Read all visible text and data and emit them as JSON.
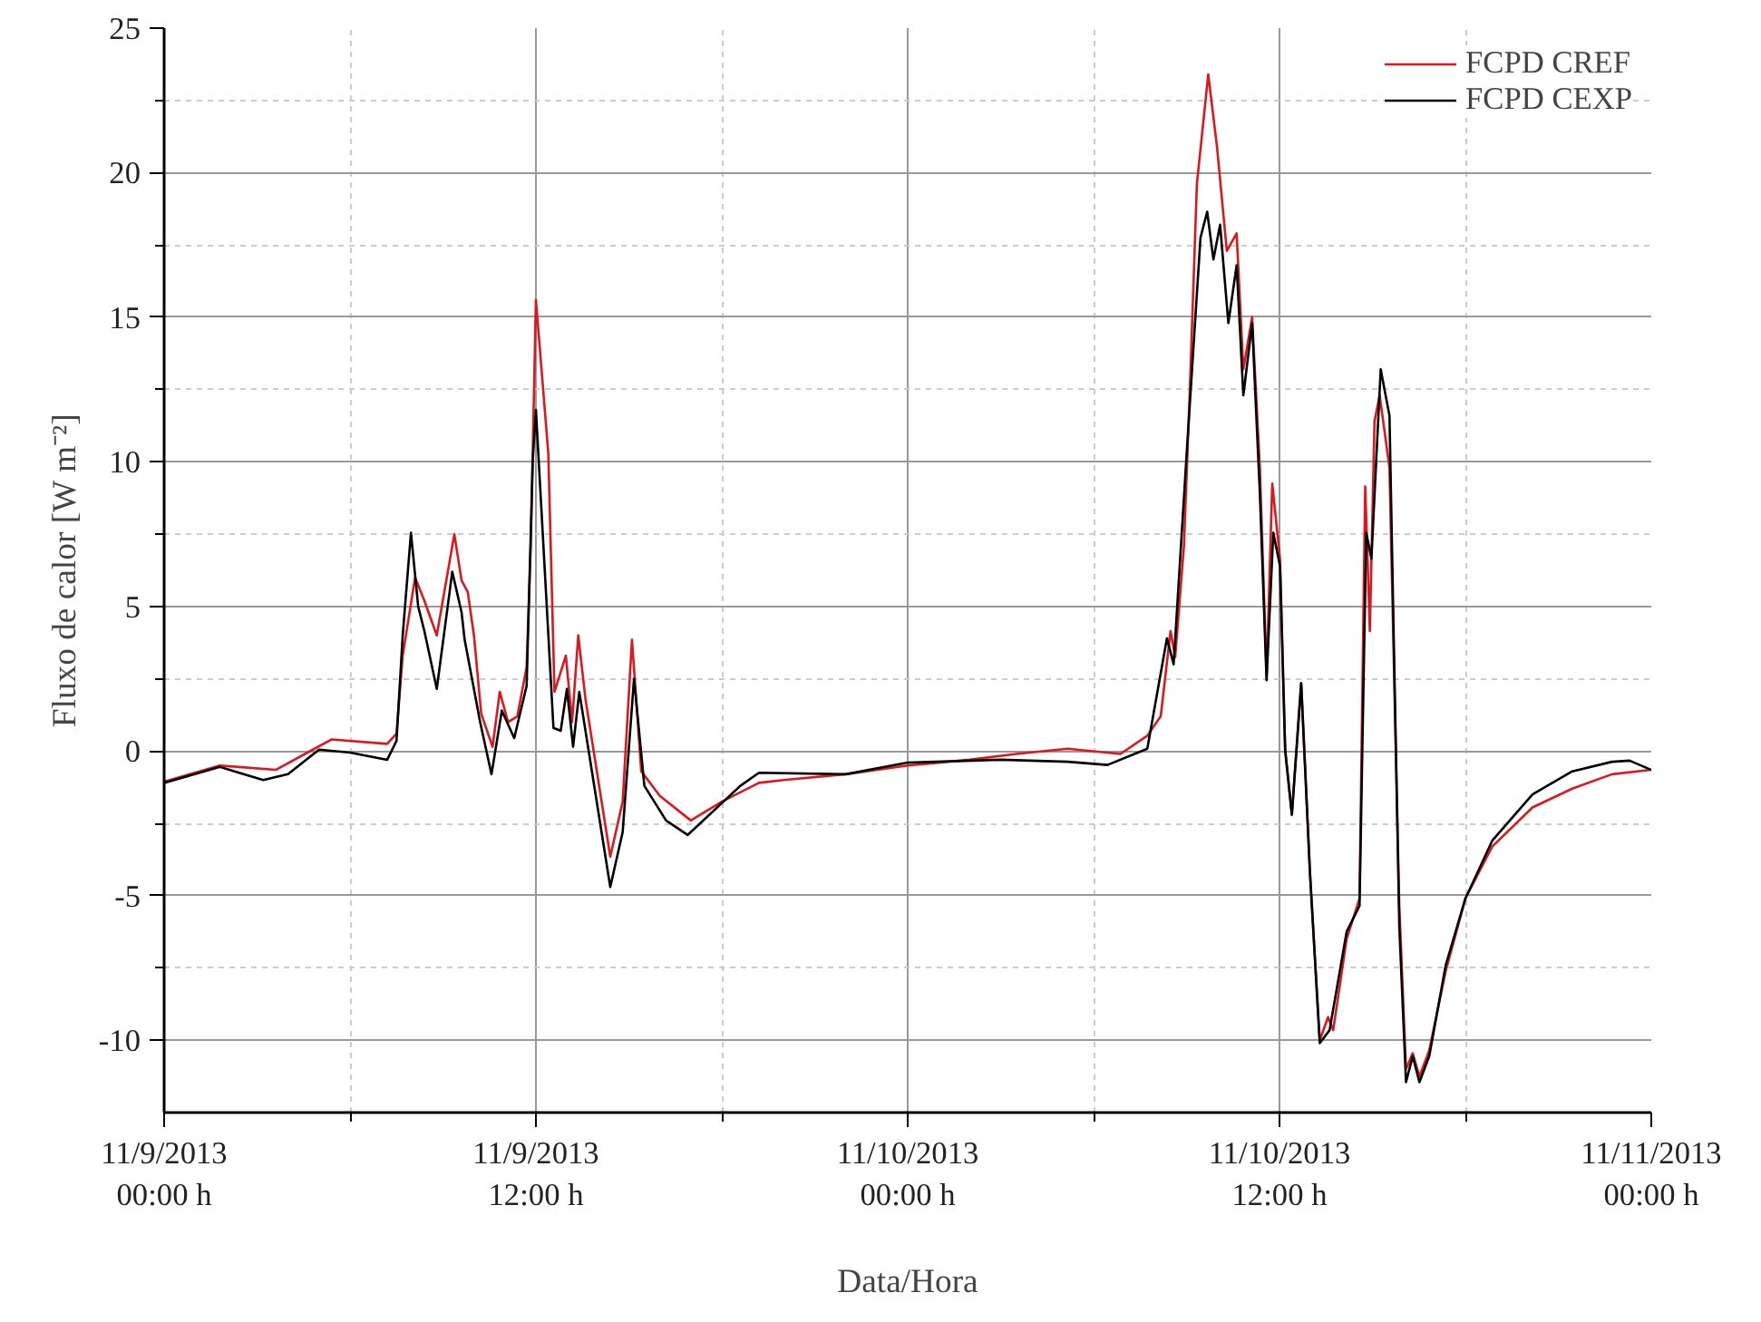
{
  "chart_data": {
    "type": "line",
    "xlabel": "Data/Hora",
    "ylabel": "Fluxo de calor [W m⁻²]",
    "xlim": [
      "2013-11-09T00:00",
      "2013-11-11T00:00"
    ],
    "ylim": [
      -12.5,
      25
    ],
    "xticks": [
      {
        "value": "2013-11-09T00:00",
        "label": "11/9/2013\n00:00 h"
      },
      {
        "value": "2013-11-09T06:00",
        "label": null
      },
      {
        "value": "2013-11-09T12:00",
        "label": "11/9/2013\n12:00 h"
      },
      {
        "value": "2013-11-09T18:00",
        "label": null
      },
      {
        "value": "2013-11-10T00:00",
        "label": "11/10/2013\n00:00 h"
      },
      {
        "value": "2013-11-10T06:00",
        "label": null
      },
      {
        "value": "2013-11-10T12:00",
        "label": "11/10/2013\n12:00 h"
      },
      {
        "value": "2013-11-10T18:00",
        "label": null
      },
      {
        "value": "2013-11-11T00:00",
        "label": "11/11/2013\n00:00 h"
      }
    ],
    "yticks": [
      -10,
      {
        "value": -7.5,
        "label": null
      },
      -5,
      {
        "value": -2.5,
        "label": null
      },
      0,
      {
        "value": 2.5,
        "label": null
      },
      5,
      {
        "value": 7.5,
        "label": null
      },
      10,
      {
        "value": 12.5,
        "label": null
      },
      15,
      {
        "value": 17.5,
        "label": null
      },
      20,
      {
        "value": 22.5,
        "label": null
      },
      25
    ],
    "grid": true,
    "legend": "top right",
    "line_style": "solid",
    "series": [
      {
        "name": "FCPD CREF",
        "color": "#e0161e",
        "x": [
          "2013-11-09T00:00",
          "2013-11-09T01:48",
          "2013-11-09T03:36",
          "2013-11-09T04:48",
          "2013-11-09T05:24",
          "2013-11-09T07:12",
          "2013-11-09T07:30",
          "2013-11-09T07:42",
          "2013-11-09T08:06",
          "2013-11-09T08:24",
          "2013-11-09T08:48",
          "2013-11-09T09:22",
          "2013-11-09T09:36",
          "2013-11-09T09:48",
          "2013-11-09T10:00",
          "2013-11-09T10:14",
          "2013-11-09T10:36",
          "2013-11-09T10:50",
          "2013-11-09T11:06",
          "2013-11-09T11:24",
          "2013-11-09T11:42",
          "2013-11-09T11:50",
          "2013-11-09T12:00",
          "2013-11-09T12:24",
          "2013-11-09T12:36",
          "2013-11-09T12:58",
          "2013-11-09T13:10",
          "2013-11-09T13:22",
          "2013-11-09T13:36",
          "2013-11-09T14:24",
          "2013-11-09T14:48",
          "2013-11-09T15:06",
          "2013-11-09T15:24",
          "2013-11-09T16:00",
          "2013-11-09T17:00",
          "2013-11-09T18:00",
          "2013-11-09T19:12",
          "2013-11-09T20:00",
          "2013-11-09T22:00",
          "2013-11-10T00:00",
          "2013-11-10T02:00",
          "2013-11-10T03:30",
          "2013-11-10T05:10",
          "2013-11-10T06:52",
          "2013-11-10T07:44",
          "2013-11-10T08:10",
          "2013-11-10T08:29",
          "2013-11-10T08:38",
          "2013-11-10T08:55",
          "2013-11-10T09:07",
          "2013-11-10T09:20",
          "2013-11-10T09:42",
          "2013-11-10T09:59",
          "2013-11-10T10:18",
          "2013-11-10T10:37",
          "2013-11-10T10:50",
          "2013-11-10T11:07",
          "2013-11-10T11:22",
          "2013-11-10T11:35",
          "2013-11-10T11:46",
          "2013-11-10T12:01",
          "2013-11-10T12:11",
          "2013-11-10T12:24",
          "2013-11-10T12:42",
          "2013-11-10T12:59",
          "2013-11-10T13:18",
          "2013-11-10T13:34",
          "2013-11-10T13:44",
          "2013-11-10T14:10",
          "2013-11-10T14:35",
          "2013-11-10T14:46",
          "2013-11-10T14:55",
          "2013-11-10T15:04",
          "2013-11-10T15:14",
          "2013-11-10T15:33",
          "2013-11-10T15:52",
          "2013-11-10T16:05",
          "2013-11-10T16:18",
          "2013-11-10T16:31",
          "2013-11-10T16:50",
          "2013-11-10T17:22",
          "2013-11-10T18:00",
          "2013-11-10T18:52",
          "2013-11-10T20:10",
          "2013-11-10T21:27",
          "2013-11-10T22:44",
          "2013-11-11T00:00"
        ],
        "values": [
          -1.06,
          -0.5,
          -0.65,
          0.05,
          0.4,
          0.25,
          0.6,
          3.3,
          6.0,
          5.2,
          4.0,
          7.5,
          5.9,
          5.5,
          4.0,
          1.3,
          0.15,
          2.05,
          1.0,
          1.2,
          2.9,
          7.1,
          15.6,
          10.3,
          2.05,
          3.3,
          1.0,
          4.0,
          1.8,
          -3.65,
          -1.75,
          3.85,
          -0.7,
          -1.55,
          -2.4,
          -1.75,
          -1.1,
          -1.0,
          -0.8,
          -0.5,
          -0.3,
          -0.1,
          0.08,
          -0.1,
          0.53,
          1.2,
          4.15,
          3.25,
          7.1,
          12.8,
          19.6,
          23.4,
          20.9,
          17.3,
          17.9,
          13.2,
          15.0,
          9.8,
          2.6,
          9.25,
          6.65,
          0.1,
          -2.2,
          2.35,
          -4.2,
          -10.0,
          -9.2,
          -9.65,
          -6.5,
          -5.1,
          9.15,
          4.15,
          11.4,
          12.3,
          9.8,
          -5.35,
          -11.0,
          -10.45,
          -11.25,
          -10.35,
          -7.6,
          -5.1,
          -3.3,
          -1.95,
          -1.3,
          -0.8,
          -0.65
        ]
      },
      {
        "name": "FCPD CEXP",
        "color": "#000000",
        "x": [
          "2013-11-09T00:00",
          "2013-11-09T01:48",
          "2013-11-09T03:12",
          "2013-11-09T04:00",
          "2013-11-09T05:00",
          "2013-11-09T06:00",
          "2013-11-09T07:12",
          "2013-11-09T07:30",
          "2013-11-09T07:42",
          "2013-11-09T07:58",
          "2013-11-09T08:12",
          "2013-11-09T08:24",
          "2013-11-09T08:48",
          "2013-11-09T09:18",
          "2013-11-09T09:36",
          "2013-11-09T09:42",
          "2013-11-09T10:12",
          "2013-11-09T10:34",
          "2013-11-09T10:54",
          "2013-11-09T11:18",
          "2013-11-09T11:42",
          "2013-11-09T11:54",
          "2013-11-09T12:00",
          "2013-11-09T12:34",
          "2013-11-09T12:48",
          "2013-11-09T13:00",
          "2013-11-09T13:12",
          "2013-11-09T13:24",
          "2013-11-09T14:24",
          "2013-11-09T14:48",
          "2013-11-09T15:10",
          "2013-11-09T15:30",
          "2013-11-09T16:12",
          "2013-11-09T16:54",
          "2013-11-09T17:36",
          "2013-11-09T18:36",
          "2013-11-09T19:12",
          "2013-11-09T22:00",
          "2013-11-10T00:00",
          "2013-11-10T03:00",
          "2013-11-10T05:10",
          "2013-11-10T06:27",
          "2013-11-10T07:44",
          "2013-11-10T08:22",
          "2013-11-10T08:35",
          "2013-11-10T09:01",
          "2013-11-10T09:27",
          "2013-11-10T09:40",
          "2013-11-10T09:52",
          "2013-11-10T10:05",
          "2013-11-10T10:21",
          "2013-11-10T10:37",
          "2013-11-10T10:50",
          "2013-11-10T11:07",
          "2013-11-10T11:22",
          "2013-11-10T11:35",
          "2013-11-10T11:48",
          "2013-11-10T12:01",
          "2013-11-10T12:11",
          "2013-11-10T12:24",
          "2013-11-10T12:42",
          "2013-11-10T12:59",
          "2013-11-10T13:18",
          "2013-11-10T13:37",
          "2013-11-10T14:10",
          "2013-11-10T14:35",
          "2013-11-10T14:48",
          "2013-11-10T14:58",
          "2013-11-10T15:16",
          "2013-11-10T15:33",
          "2013-11-10T15:52",
          "2013-11-10T16:05",
          "2013-11-10T16:18",
          "2013-11-10T16:31",
          "2013-11-10T16:50",
          "2013-11-10T17:22",
          "2013-11-10T18:00",
          "2013-11-10T18:52",
          "2013-11-10T20:10",
          "2013-11-10T21:27",
          "2013-11-10T22:44",
          "2013-11-10T23:18",
          "2013-11-11T00:00"
        ],
        "values": [
          -1.1,
          -0.55,
          -1.0,
          -0.8,
          0.05,
          -0.05,
          -0.3,
          0.35,
          4.0,
          7.55,
          5.0,
          4.15,
          2.15,
          6.2,
          4.8,
          3.85,
          1.0,
          -0.8,
          1.4,
          0.45,
          2.25,
          10.1,
          11.8,
          0.8,
          0.7,
          2.15,
          0.15,
          2.05,
          -4.7,
          -2.8,
          2.5,
          -1.2,
          -2.4,
          -2.9,
          -2.2,
          -1.2,
          -0.75,
          -0.8,
          -0.4,
          -0.3,
          -0.37,
          -0.48,
          0.08,
          3.9,
          3.0,
          10.5,
          17.75,
          18.65,
          17.0,
          18.2,
          14.8,
          16.8,
          12.3,
          14.8,
          8.9,
          2.45,
          7.55,
          6.4,
          0,
          -2.2,
          2.35,
          -4.2,
          -10.1,
          -9.65,
          -6.25,
          -5.35,
          7.55,
          6.65,
          13.2,
          11.6,
          -6.05,
          -11.45,
          -10.55,
          -11.45,
          -10.55,
          -7.4,
          -5.1,
          -3.1,
          -1.5,
          -0.7,
          -0.37,
          -0.33,
          -0.65
        ]
      }
    ]
  }
}
